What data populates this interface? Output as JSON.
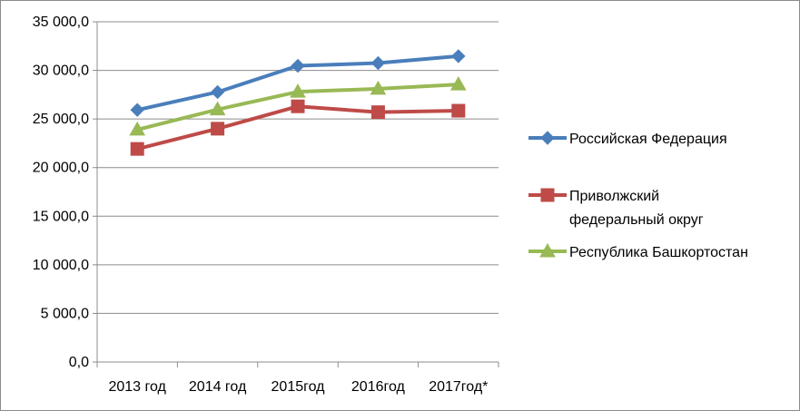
{
  "chart_data": {
    "type": "line",
    "categories": [
      "2013 год",
      "2014 год",
      "2015год",
      "2016год",
      "2017год*"
    ],
    "ylim": [
      0,
      35000
    ],
    "yticks": [
      0,
      5000,
      10000,
      15000,
      20000,
      25000,
      30000,
      35000
    ],
    "ytick_labels": [
      "0,0",
      "5 000,0",
      "10 000,0",
      "15 000,0",
      "20 000,0",
      "25 000,0",
      "30 000,0",
      "35 000,0"
    ],
    "grid": true,
    "legend_position": "right",
    "series": [
      {
        "name": "Российская Федерация",
        "legend_lines": [
          "Российская Федерация"
        ],
        "color": "#4a7ebb",
        "marker": "diamond",
        "values": [
          25930,
          27770,
          30470,
          30750,
          31460
        ]
      },
      {
        "name": "Приволжский федеральный округ",
        "legend_lines": [
          "Приволжский",
          "федеральный округ"
        ],
        "color": "#be4b48",
        "marker": "square",
        "values": [
          21920,
          24000,
          26300,
          25700,
          25850
        ]
      },
      {
        "name": "Республика Башкортостан",
        "legend_lines": [
          "Республика Башкортостан"
        ],
        "color": "#98b954",
        "marker": "triangle",
        "values": [
          23900,
          25980,
          27800,
          28100,
          28550
        ]
      }
    ]
  }
}
